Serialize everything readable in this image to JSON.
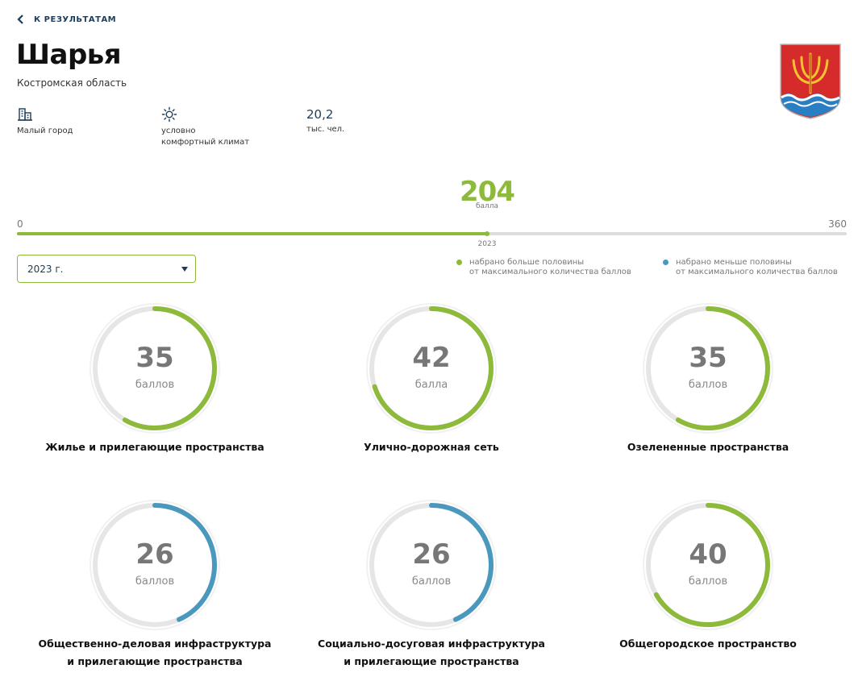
{
  "nav": {
    "back_label": "К РЕЗУЛЬТАТАМ"
  },
  "city": {
    "name": "Шарья",
    "region": "Костромская область",
    "coat_of_arms_icon": "coat-of-arms-icon"
  },
  "info": {
    "city_type": "Малый город",
    "city_type_icon": "building-icon",
    "climate_line1": "условно",
    "climate_line2": "комфортный климат",
    "climate_icon": "sun-icon",
    "population_value": "20,2",
    "population_unit": "тыс. чел."
  },
  "total": {
    "score": "204",
    "unit": "балла",
    "min_label": "0",
    "max_label": "360",
    "score_num": 204,
    "max_num": 360,
    "year_mark": "2023"
  },
  "year_select": {
    "value": "2023 г."
  },
  "legend": {
    "above_line1": "набрано больше половины",
    "above_line2": "от максимального количества баллов",
    "below_line1": "набрано меньше половины",
    "below_line2": "от максимального количества баллов"
  },
  "colors": {
    "above_half": "#8dba3a",
    "below_half": "#4a98bd",
    "track": "#e6e6e6",
    "accent": "#1d3c59"
  },
  "categories": [
    {
      "score": "35",
      "score_num": 35,
      "max": 60,
      "unit": "баллов",
      "title_line1": "Жилье и прилегающие пространства",
      "title_line2": "",
      "status": "above"
    },
    {
      "score": "42",
      "score_num": 42,
      "max": 60,
      "unit": "балла",
      "title_line1": "Улично-дорожная сеть",
      "title_line2": "",
      "status": "above"
    },
    {
      "score": "35",
      "score_num": 35,
      "max": 60,
      "unit": "баллов",
      "title_line1": "Озелененные пространства",
      "title_line2": "",
      "status": "above"
    },
    {
      "score": "26",
      "score_num": 26,
      "max": 60,
      "unit": "баллов",
      "title_line1": "Общественно-деловая инфраструктура",
      "title_line2": "и прилегающие пространства",
      "status": "below"
    },
    {
      "score": "26",
      "score_num": 26,
      "max": 60,
      "unit": "баллов",
      "title_line1": "Социально-досуговая инфраструктура",
      "title_line2": "и прилегающие пространства",
      "status": "below"
    },
    {
      "score": "40",
      "score_num": 40,
      "max": 60,
      "unit": "баллов",
      "title_line1": "Общегородское пространство",
      "title_line2": "",
      "status": "above"
    }
  ]
}
